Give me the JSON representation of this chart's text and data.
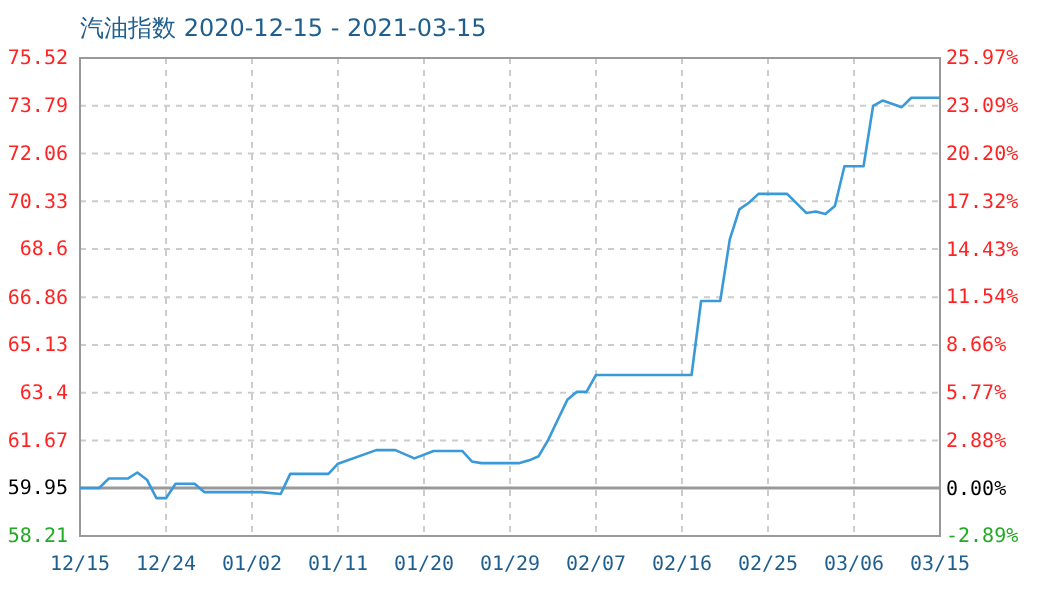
{
  "chart_data": {
    "type": "line",
    "title": "汽油指数 2020-12-15 - 2021-03-15",
    "x": [
      "2020-12-15",
      "2020-12-17",
      "2020-12-18",
      "2020-12-20",
      "2020-12-21",
      "2020-12-22",
      "2020-12-23",
      "2020-12-24",
      "2020-12-25",
      "2020-12-27",
      "2020-12-28",
      "2021-01-03",
      "2021-01-05",
      "2021-01-06",
      "2021-01-10",
      "2021-01-11",
      "2021-01-15",
      "2021-01-17",
      "2021-01-19",
      "2021-01-21",
      "2021-01-24",
      "2021-01-25",
      "2021-01-26",
      "2021-01-30",
      "2021-01-31",
      "2021-02-01",
      "2021-02-02",
      "2021-02-03",
      "2021-02-04",
      "2021-02-05",
      "2021-02-06",
      "2021-02-07",
      "2021-02-17",
      "2021-02-18",
      "2021-02-20",
      "2021-02-21",
      "2021-02-22",
      "2021-02-23",
      "2021-02-24",
      "2021-02-27",
      "2021-03-01",
      "2021-03-02",
      "2021-03-03",
      "2021-03-04",
      "2021-03-05",
      "2021-03-07",
      "2021-03-08",
      "2021-03-09",
      "2021-03-11",
      "2021-03-12",
      "2021-03-15"
    ],
    "series": [
      {
        "color": "#3a9ad9",
        "values": [
          59.95,
          59.95,
          60.29,
          60.29,
          60.51,
          60.25,
          59.58,
          59.58,
          60.1,
          60.1,
          59.8,
          59.8,
          59.73,
          60.46,
          60.46,
          60.83,
          61.32,
          61.32,
          61.02,
          61.29,
          61.29,
          60.91,
          60.85,
          60.85,
          60.95,
          61.1,
          61.69,
          62.42,
          63.14,
          63.43,
          63.43,
          64.04,
          64.04,
          66.72,
          66.72,
          68.95,
          70.04,
          70.28,
          70.6,
          70.6,
          69.91,
          69.96,
          69.87,
          70.16,
          71.6,
          71.6,
          73.79,
          73.98,
          73.74,
          74.08,
          74.08
        ]
      }
    ],
    "xlim": [
      "2020-12-15",
      "2021-03-15"
    ],
    "xticks": [
      {
        "value": "2020-12-15",
        "label": "12/15"
      },
      {
        "value": "2020-12-24",
        "label": "12/24"
      },
      {
        "value": "2021-01-02",
        "label": "01/02"
      },
      {
        "value": "2021-01-11",
        "label": "01/11"
      },
      {
        "value": "2021-01-20",
        "label": "01/20"
      },
      {
        "value": "2021-01-29",
        "label": "01/29"
      },
      {
        "value": "2021-02-07",
        "label": "02/07"
      },
      {
        "value": "2021-02-16",
        "label": "02/16"
      },
      {
        "value": "2021-02-25",
        "label": "02/25"
      },
      {
        "value": "2021-03-06",
        "label": "03/06"
      },
      {
        "value": "2021-03-15",
        "label": "03/15"
      }
    ],
    "ylim": [
      58.21,
      75.52
    ],
    "yticks": [
      58.21,
      59.95,
      61.67,
      63.4,
      65.13,
      66.86,
      68.6,
      70.33,
      72.06,
      73.79,
      75.52
    ],
    "y2lim": [
      -2.89,
      25.97
    ],
    "y2ticks": [
      {
        "value": -2.89,
        "label": "-2.89%"
      },
      {
        "value": 0,
        "label": "0.00%"
      },
      {
        "value": 2.88,
        "label": "2.88%"
      },
      {
        "value": 5.77,
        "label": "5.77%"
      },
      {
        "value": 8.66,
        "label": "8.66%"
      },
      {
        "value": 11.54,
        "label": "11.54%"
      },
      {
        "value": 14.43,
        "label": "14.43%"
      },
      {
        "value": 17.32,
        "label": "17.32%"
      },
      {
        "value": 20.2,
        "label": "20.20%"
      },
      {
        "value": 23.09,
        "label": "23.09%"
      },
      {
        "value": 25.97,
        "label": "25.97%"
      }
    ],
    "ref_lines": [
      {
        "axis": "y",
        "value": 59.95,
        "color": "#999999"
      }
    ],
    "grid": true
  }
}
